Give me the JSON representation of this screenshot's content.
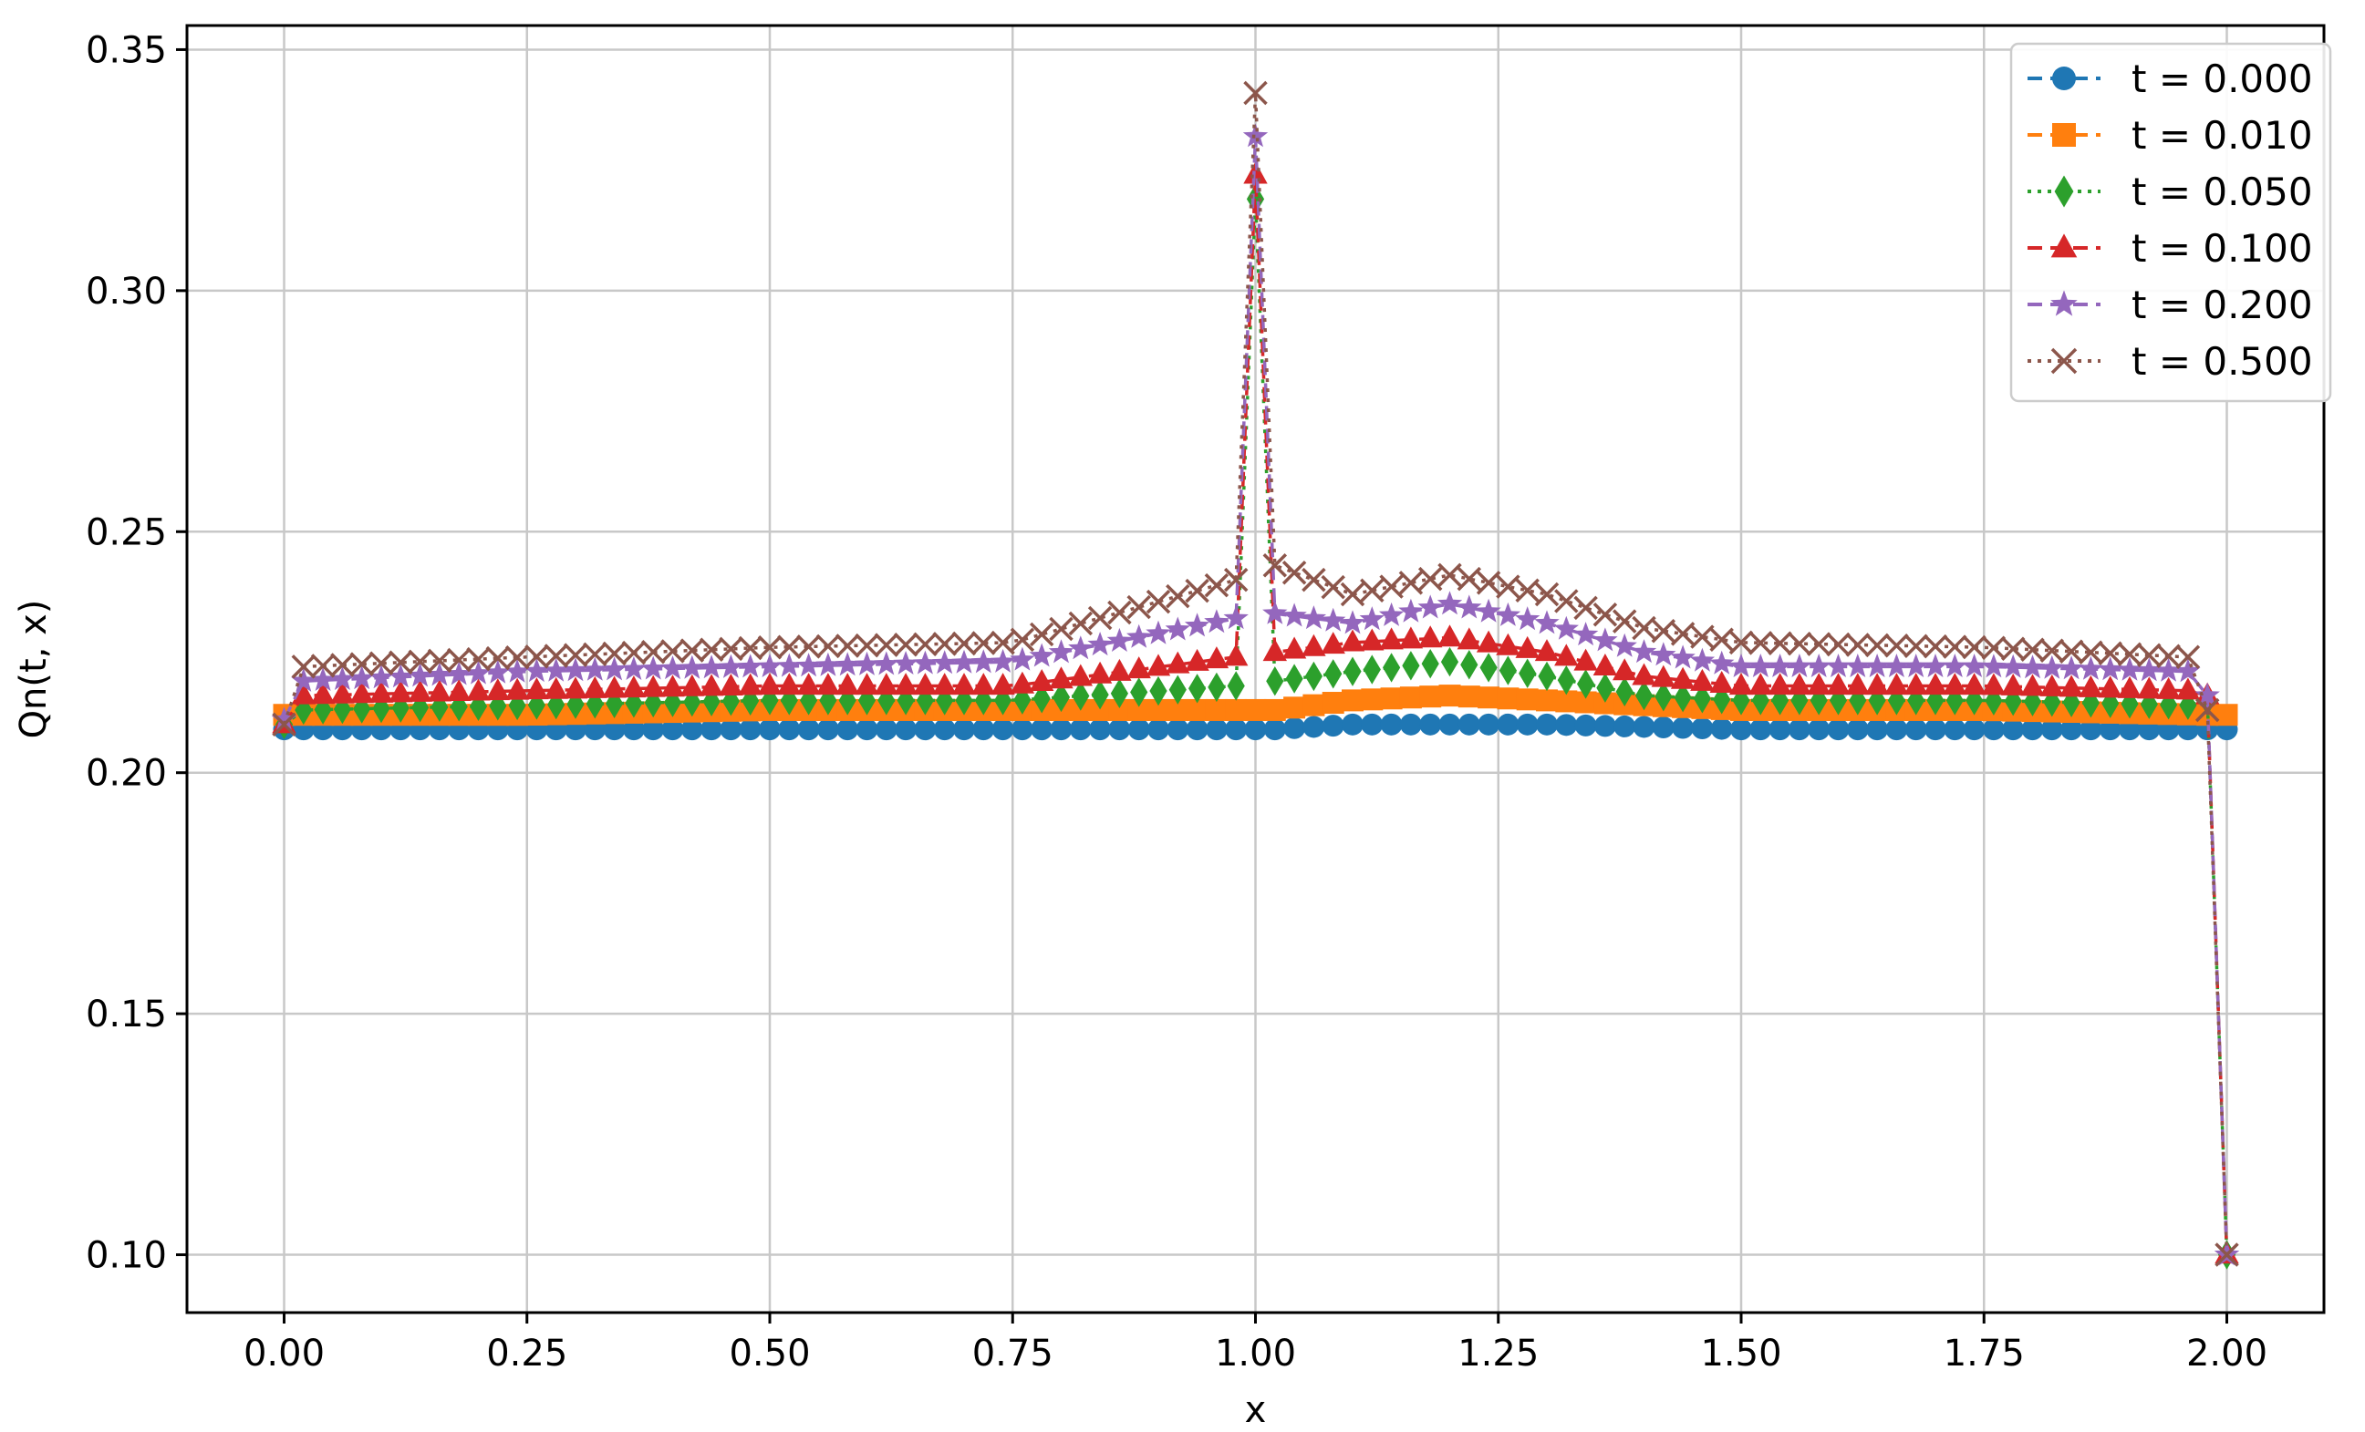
{
  "chart_data": {
    "type": "line",
    "title": "",
    "xlabel": "x",
    "ylabel": "Qn(t, x)",
    "xlim": [
      -0.1,
      2.1
    ],
    "ylim": [
      0.088,
      0.355
    ],
    "xticks": [
      0.0,
      0.25,
      0.5,
      0.75,
      1.0,
      1.25,
      1.5,
      1.75,
      2.0
    ],
    "xtick_labels": [
      "0.00",
      "0.25",
      "0.50",
      "0.75",
      "1.00",
      "1.25",
      "1.50",
      "1.75",
      "2.00"
    ],
    "yticks": [
      0.1,
      0.15,
      0.2,
      0.25,
      0.3,
      0.35
    ],
    "ytick_labels": [
      "0.10",
      "0.15",
      "0.20",
      "0.25",
      "0.30",
      "0.35"
    ],
    "grid": true,
    "legend_position": "top-right",
    "series": [
      {
        "name": "t = 0.000",
        "color": "#1f77b4",
        "marker": "circle",
        "linestyle": "dashed",
        "x": [
          0.0,
          0.02,
          0.25,
          0.5,
          0.75,
          0.98,
          1.0,
          1.02,
          1.1,
          1.2,
          1.3,
          1.5,
          1.75,
          1.98,
          2.0
        ],
        "values": [
          0.209,
          0.209,
          0.209,
          0.209,
          0.209,
          0.209,
          0.209,
          0.209,
          0.21,
          0.21,
          0.21,
          0.209,
          0.209,
          0.209,
          0.209
        ]
      },
      {
        "name": "t = 0.010",
        "color": "#ff7f0e",
        "marker": "square",
        "linestyle": "dashed",
        "x": [
          0.0,
          0.02,
          0.25,
          0.5,
          0.75,
          0.98,
          1.0,
          1.02,
          1.1,
          1.2,
          1.3,
          1.5,
          1.75,
          1.98,
          2.0
        ],
        "values": [
          0.212,
          0.212,
          0.212,
          0.213,
          0.213,
          0.213,
          0.213,
          0.213,
          0.215,
          0.216,
          0.215,
          0.213,
          0.213,
          0.212,
          0.212
        ]
      },
      {
        "name": "t = 0.050",
        "color": "#2ca02c",
        "marker": "diamond",
        "linestyle": "dotted",
        "x": [
          0.0,
          0.02,
          0.25,
          0.5,
          0.75,
          0.98,
          0.99,
          1.0,
          1.01,
          1.02,
          1.1,
          1.2,
          1.3,
          1.4,
          1.5,
          1.75,
          1.96,
          1.98,
          2.0
        ],
        "values": [
          0.21,
          0.213,
          0.214,
          0.215,
          0.215,
          0.218,
          0.27,
          0.319,
          0.27,
          0.219,
          0.221,
          0.223,
          0.22,
          0.216,
          0.215,
          0.215,
          0.214,
          0.215,
          0.1
        ]
      },
      {
        "name": "t = 0.100",
        "color": "#d62728",
        "marker": "triangle",
        "linestyle": "dashed",
        "x": [
          0.0,
          0.02,
          0.25,
          0.5,
          0.75,
          0.98,
          0.99,
          1.0,
          1.01,
          1.02,
          1.1,
          1.2,
          1.3,
          1.4,
          1.5,
          1.75,
          1.96,
          1.98,
          2.0
        ],
        "values": [
          0.21,
          0.216,
          0.217,
          0.218,
          0.218,
          0.224,
          0.275,
          0.324,
          0.275,
          0.225,
          0.227,
          0.228,
          0.225,
          0.22,
          0.218,
          0.218,
          0.217,
          0.216,
          0.1
        ]
      },
      {
        "name": "t = 0.200",
        "color": "#9467bd",
        "marker": "star",
        "linestyle": "dashed",
        "x": [
          0.0,
          0.02,
          0.25,
          0.5,
          0.75,
          0.98,
          0.99,
          1.0,
          1.01,
          1.02,
          1.1,
          1.2,
          1.3,
          1.4,
          1.5,
          1.75,
          1.96,
          1.98,
          2.0
        ],
        "values": [
          0.211,
          0.219,
          0.221,
          0.222,
          0.223,
          0.232,
          0.282,
          0.332,
          0.282,
          0.233,
          0.231,
          0.235,
          0.231,
          0.225,
          0.222,
          0.222,
          0.221,
          0.216,
          0.1
        ]
      },
      {
        "name": "t = 0.500",
        "color": "#8c564b",
        "marker": "x",
        "linestyle": "dotted",
        "x": [
          0.0,
          0.02,
          0.25,
          0.5,
          0.75,
          0.98,
          0.99,
          1.0,
          1.01,
          1.02,
          1.1,
          1.2,
          1.3,
          1.4,
          1.5,
          1.75,
          1.96,
          1.98,
          2.0
        ],
        "values": [
          0.21,
          0.222,
          0.224,
          0.226,
          0.227,
          0.24,
          0.29,
          0.341,
          0.29,
          0.243,
          0.237,
          0.241,
          0.237,
          0.23,
          0.227,
          0.226,
          0.224,
          0.213,
          0.1
        ]
      }
    ]
  }
}
